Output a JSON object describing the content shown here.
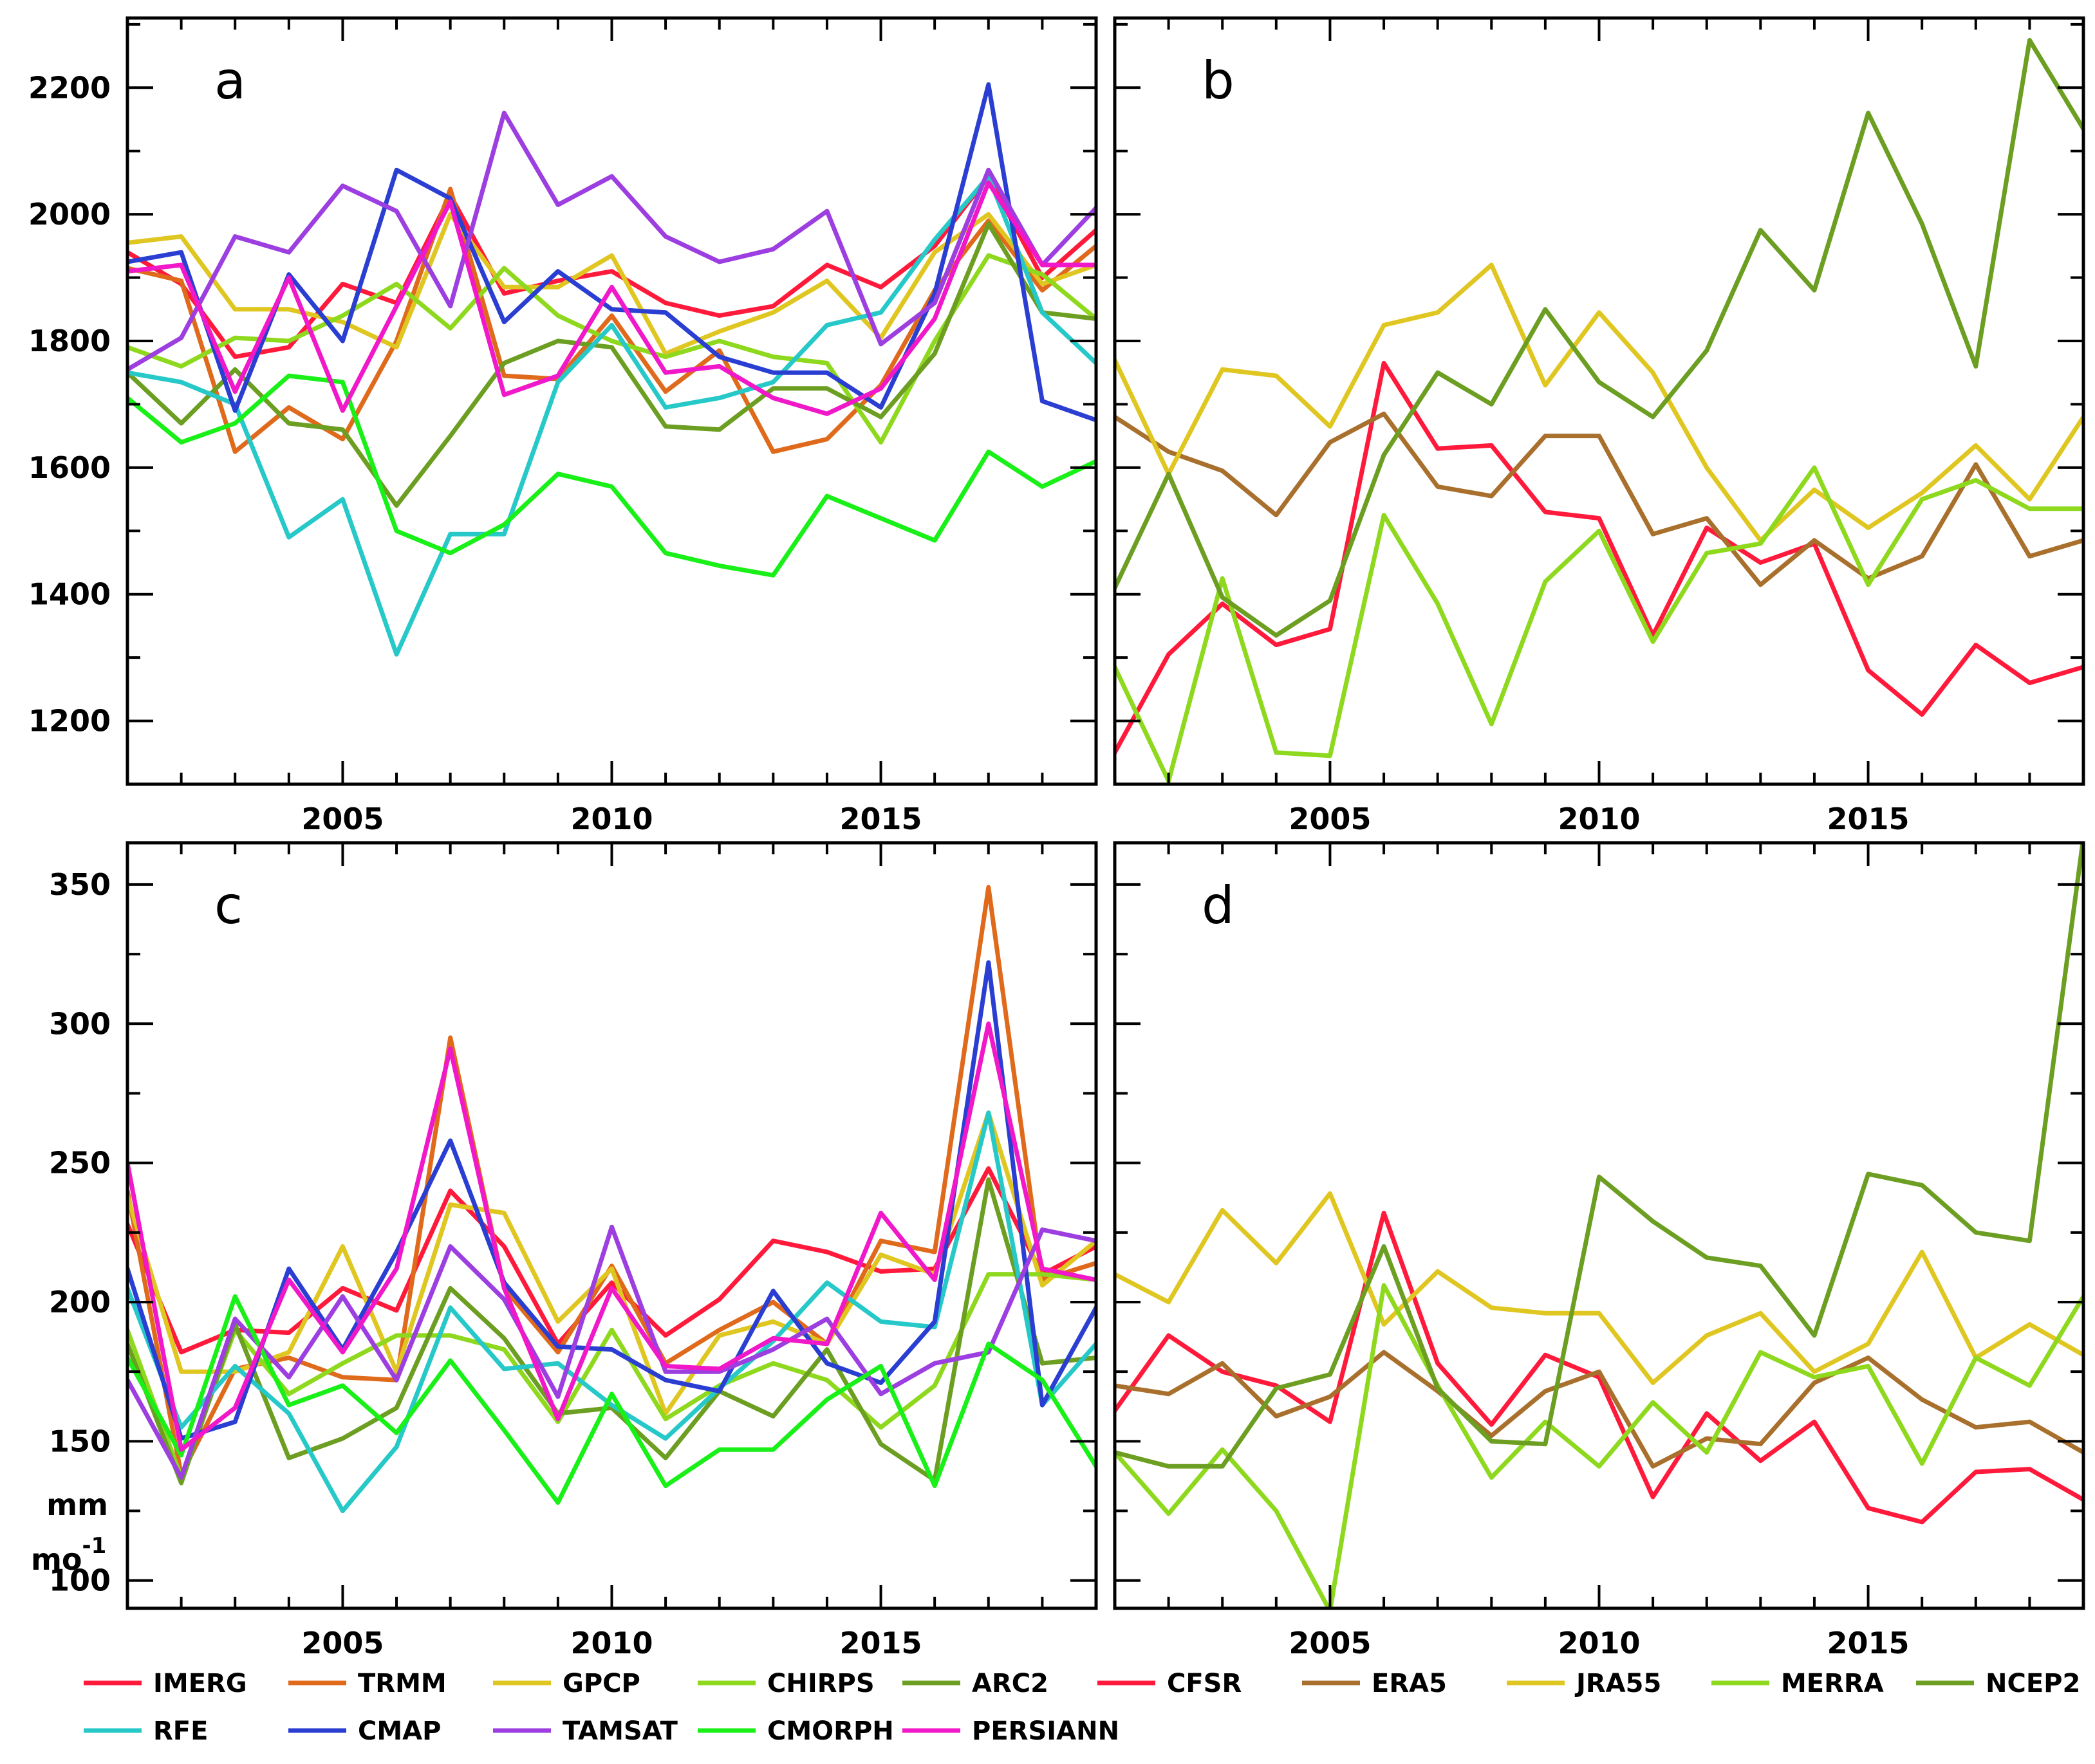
{
  "chart_data": [
    {
      "id": "a",
      "type": "line",
      "panel_label": "a",
      "xlim": [
        2001,
        2019
      ],
      "ylim": [
        1100,
        2310
      ],
      "xticks": [
        2005,
        2010,
        2015
      ],
      "yticks": [
        1200,
        1400,
        1600,
        1800,
        2000,
        2200
      ],
      "x": [
        2001,
        2002,
        2003,
        2004,
        2005,
        2006,
        2007,
        2008,
        2009,
        2010,
        2011,
        2012,
        2013,
        2014,
        2015,
        2016,
        2017,
        2018,
        2019
      ],
      "series": [
        {
          "name": "IMERG",
          "color": "#ff1a3c",
          "values": [
            1940,
            1890,
            1775,
            1790,
            1890,
            1860,
            2030,
            1875,
            1895,
            1910,
            1860,
            1840,
            1855,
            1920,
            1885,
            1950,
            2060,
            1900,
            1975
          ]
        },
        {
          "name": "TRMM",
          "color": "#e06a1c",
          "values": [
            1915,
            1895,
            1625,
            1695,
            1645,
            1800,
            2040,
            1745,
            1740,
            1840,
            1720,
            1785,
            1625,
            1645,
            1730,
            1880,
            1990,
            1880,
            1950
          ]
        },
        {
          "name": "GPCP",
          "color": "#e0c620",
          "values": [
            1955,
            1965,
            1850,
            1850,
            1830,
            1790,
            2000,
            1885,
            1885,
            1935,
            1780,
            1815,
            1845,
            1895,
            1805,
            1940,
            2000,
            1890,
            1920
          ]
        },
        {
          "name": "CHIRPS",
          "color": "#8ed81e",
          "values": [
            1790,
            1760,
            1805,
            1800,
            1840,
            1890,
            1820,
            1915,
            1840,
            1800,
            1775,
            1800,
            1775,
            1765,
            1640,
            1800,
            1935,
            1905,
            1835
          ]
        },
        {
          "name": "ARC2",
          "color": "#6c9e22",
          "values": [
            1750,
            1670,
            1755,
            1670,
            1660,
            1540,
            1650,
            1765,
            1800,
            1790,
            1665,
            1660,
            1725,
            1725,
            1680,
            1780,
            1985,
            1845,
            1835
          ]
        },
        {
          "name": "RFE",
          "color": "#26c8c8",
          "values": [
            1750,
            1735,
            1700,
            1490,
            1550,
            1305,
            1495,
            1495,
            1735,
            1825,
            1695,
            1710,
            1735,
            1825,
            1845,
            1960,
            2060,
            1845,
            1765
          ]
        },
        {
          "name": "CMAP",
          "color": "#2a3ed2",
          "values": [
            1925,
            1940,
            1690,
            1905,
            1800,
            2070,
            2025,
            1830,
            1910,
            1850,
            1845,
            1775,
            1750,
            1750,
            1695,
            1875,
            2205,
            1705,
            1675
          ]
        },
        {
          "name": "TAMSAT",
          "color": "#9c3ee0",
          "values": [
            1755,
            1805,
            1965,
            1940,
            2045,
            2005,
            1855,
            2160,
            2015,
            2060,
            1965,
            1925,
            1945,
            2005,
            1795,
            1860,
            2070,
            1920,
            2010
          ]
        },
        {
          "name": "CMORPH",
          "color": "#18f018",
          "values": [
            1710,
            1640,
            1670,
            1745,
            1735,
            1500,
            1465,
            1510,
            1590,
            1570,
            1465,
            1445,
            1430,
            1555,
            1520,
            1485,
            1625,
            1570,
            1610
          ]
        },
        {
          "name": "PERSIANN",
          "color": "#f018c8",
          "values": [
            1910,
            1920,
            1720,
            1900,
            1690,
            1855,
            2020,
            1715,
            1745,
            1885,
            1750,
            1760,
            1710,
            1685,
            1725,
            1835,
            2050,
            1920,
            1920
          ]
        }
      ]
    },
    {
      "id": "b",
      "type": "line",
      "panel_label": "b",
      "xlim": [
        2001,
        2019
      ],
      "ylim": [
        1100,
        2310
      ],
      "xticks": [
        2005,
        2010,
        2015
      ],
      "yticks": [
        1200,
        1400,
        1600,
        1800,
        2000,
        2200
      ],
      "x": [
        2001,
        2002,
        2003,
        2004,
        2005,
        2006,
        2007,
        2008,
        2009,
        2010,
        2011,
        2012,
        2013,
        2014,
        2015,
        2016,
        2017,
        2018,
        2019
      ],
      "series": [
        {
          "name": "CFSR",
          "color": "#ff1a3c",
          "values": [
            1150,
            1305,
            1385,
            1320,
            1345,
            1765,
            1630,
            1635,
            1530,
            1520,
            1335,
            1505,
            1450,
            1480,
            1280,
            1210,
            1320,
            1260,
            1285
          ]
        },
        {
          "name": "ERA5",
          "color": "#a8702c",
          "values": [
            1680,
            1625,
            1595,
            1525,
            1640,
            1685,
            1570,
            1555,
            1650,
            1650,
            1495,
            1520,
            1415,
            1485,
            1425,
            1460,
            1605,
            1460,
            1485
          ]
        },
        {
          "name": "JRA55",
          "color": "#e0c620",
          "values": [
            1770,
            1590,
            1755,
            1745,
            1665,
            1825,
            1845,
            1920,
            1730,
            1845,
            1750,
            1600,
            1485,
            1565,
            1505,
            1560,
            1635,
            1550,
            1680
          ]
        },
        {
          "name": "MERRA",
          "color": "#8ed81e",
          "values": [
            1285,
            1105,
            1425,
            1150,
            1145,
            1525,
            1385,
            1195,
            1420,
            1500,
            1325,
            1465,
            1480,
            1600,
            1415,
            1550,
            1580,
            1535,
            1535
          ]
        },
        {
          "name": "NCEP2",
          "color": "#6c9e22",
          "values": [
            1410,
            1590,
            1395,
            1335,
            1390,
            1620,
            1750,
            1700,
            1850,
            1735,
            1680,
            1785,
            1975,
            1880,
            2160,
            1985,
            1760,
            2275,
            2135
          ]
        }
      ]
    },
    {
      "id": "c",
      "type": "line",
      "panel_label": "c",
      "xlim": [
        2001,
        2019
      ],
      "ylim": [
        90,
        365
      ],
      "xticks": [
        2005,
        2010,
        2015
      ],
      "yticks": [
        100,
        150,
        200,
        250,
        300,
        350
      ],
      "ylabel_line1": "mm",
      "ylabel_line2": "mo",
      "ylabel_superscript": "-1",
      "x": [
        2001,
        2002,
        2003,
        2004,
        2005,
        2006,
        2007,
        2008,
        2009,
        2010,
        2011,
        2012,
        2013,
        2014,
        2015,
        2016,
        2017,
        2018,
        2019
      ],
      "series": [
        {
          "name": "IMERG",
          "color": "#ff1a3c",
          "values": [
            228,
            182,
            190,
            189,
            205,
            197,
            240,
            220,
            185,
            207,
            188,
            201,
            222,
            218,
            211,
            212,
            248,
            210,
            220
          ]
        },
        {
          "name": "TRMM",
          "color": "#e06a1c",
          "values": [
            240,
            138,
            176,
            180,
            173,
            172,
            295,
            205,
            182,
            213,
            178,
            190,
            200,
            185,
            222,
            218,
            349,
            208,
            214
          ]
        },
        {
          "name": "GPCP",
          "color": "#e0c620",
          "values": [
            238,
            175,
            175,
            182,
            220,
            175,
            235,
            232,
            193,
            212,
            160,
            188,
            193,
            185,
            217,
            210,
            268,
            206,
            222
          ]
        },
        {
          "name": "CHIRPS",
          "color": "#8ed81e",
          "values": [
            190,
            137,
            190,
            167,
            178,
            188,
            188,
            183,
            157,
            190,
            158,
            170,
            178,
            172,
            155,
            170,
            210,
            210,
            208
          ]
        },
        {
          "name": "ARC2",
          "color": "#6c9e22",
          "values": [
            185,
            135,
            192,
            144,
            151,
            162,
            205,
            187,
            160,
            162,
            144,
            168,
            159,
            183,
            149,
            136,
            244,
            178,
            180
          ]
        },
        {
          "name": "RFE",
          "color": "#26c8c8",
          "values": [
            205,
            155,
            177,
            160,
            125,
            148,
            198,
            176,
            178,
            163,
            151,
            169,
            186,
            207,
            193,
            191,
            268,
            163,
            185
          ]
        },
        {
          "name": "CMAP",
          "color": "#2a3ed2",
          "values": [
            212,
            151,
            157,
            212,
            183,
            218,
            258,
            207,
            184,
            183,
            172,
            168,
            204,
            178,
            171,
            193,
            322,
            163,
            198
          ]
        },
        {
          "name": "TAMSAT",
          "color": "#9c3ee0",
          "values": [
            172,
            137,
            194,
            173,
            202,
            172,
            220,
            201,
            166,
            227,
            175,
            175,
            183,
            194,
            167,
            178,
            182,
            226,
            222
          ]
        },
        {
          "name": "CMORPH",
          "color": "#18f018",
          "values": [
            180,
            145,
            202,
            163,
            170,
            153,
            179,
            154,
            128,
            167,
            134,
            147,
            147,
            165,
            177,
            134,
            185,
            172,
            141
          ]
        },
        {
          "name": "PERSIANN",
          "color": "#f018c8",
          "values": [
            250,
            147,
            162,
            208,
            182,
            212,
            291,
            205,
            158,
            205,
            177,
            176,
            187,
            185,
            232,
            208,
            300,
            212,
            208
          ]
        }
      ]
    },
    {
      "id": "d",
      "type": "line",
      "panel_label": "d",
      "xlim": [
        2001,
        2019
      ],
      "ylim": [
        90,
        365
      ],
      "xticks": [
        2005,
        2010,
        2015
      ],
      "yticks": [
        100,
        150,
        200,
        250,
        300,
        350
      ],
      "x": [
        2001,
        2002,
        2003,
        2004,
        2005,
        2006,
        2007,
        2008,
        2009,
        2010,
        2011,
        2012,
        2013,
        2014,
        2015,
        2016,
        2017,
        2018,
        2019
      ],
      "series": [
        {
          "name": "CFSR",
          "color": "#ff1a3c",
          "values": [
            161,
            188,
            175,
            170,
            157,
            232,
            178,
            156,
            181,
            173,
            130,
            160,
            143,
            157,
            126,
            121,
            139,
            140,
            129
          ]
        },
        {
          "name": "ERA5",
          "color": "#a8702c",
          "values": [
            170,
            167,
            178,
            159,
            166,
            182,
            168,
            152,
            168,
            175,
            141,
            151,
            149,
            171,
            180,
            165,
            155,
            157,
            146
          ]
        },
        {
          "name": "JRA55",
          "color": "#e0c620",
          "values": [
            210,
            200,
            233,
            214,
            239,
            192,
            211,
            198,
            196,
            196,
            171,
            188,
            196,
            175,
            185,
            218,
            180,
            192,
            181
          ]
        },
        {
          "name": "MERRA",
          "color": "#8ed81e",
          "values": [
            146,
            124,
            147,
            125,
            89,
            206,
            170,
            137,
            157,
            141,
            164,
            146,
            182,
            173,
            177,
            142,
            180,
            170,
            202
          ]
        },
        {
          "name": "NCEP2",
          "color": "#6c9e22",
          "values": [
            146,
            141,
            141,
            169,
            174,
            220,
            169,
            150,
            149,
            245,
            229,
            216,
            213,
            188,
            246,
            242,
            225,
            222,
            367
          ]
        }
      ]
    }
  ],
  "legend": {
    "groups": [
      {
        "rows": [
          [
            {
              "name": "IMERG",
              "color": "#ff1a3c"
            },
            {
              "name": "TRMM",
              "color": "#e06a1c"
            },
            {
              "name": "GPCP",
              "color": "#e0c620"
            },
            {
              "name": "CHIRPS",
              "color": "#8ed81e"
            },
            {
              "name": "ARC2",
              "color": "#6c9e22"
            }
          ],
          [
            {
              "name": "RFE",
              "color": "#26c8c8"
            },
            {
              "name": "CMAP",
              "color": "#2a3ed2"
            },
            {
              "name": "TAMSAT",
              "color": "#9c3ee0"
            },
            {
              "name": "CMORPH",
              "color": "#18f018"
            },
            {
              "name": "PERSIANN",
              "color": "#f018c8"
            }
          ]
        ]
      },
      {
        "rows": [
          [
            {
              "name": "CFSR",
              "color": "#ff1a3c"
            },
            {
              "name": "ERA5",
              "color": "#a8702c"
            },
            {
              "name": "JRA55",
              "color": "#e0c620"
            },
            {
              "name": "MERRA",
              "color": "#8ed81e"
            },
            {
              "name": "NCEP2",
              "color": "#6c9e22"
            }
          ]
        ]
      }
    ]
  }
}
